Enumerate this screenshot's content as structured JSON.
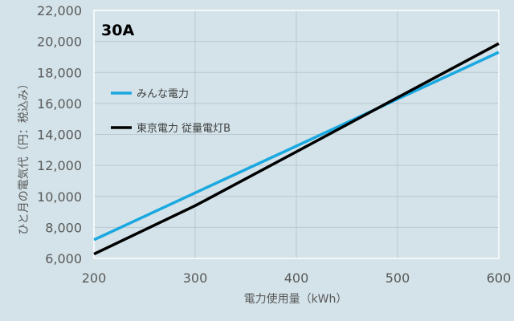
{
  "chart_data": {
    "type": "line",
    "title": "30A",
    "xlabel": "電力使用量（kWh）",
    "ylabel": "ひと月の電気代（円：税込み）",
    "xlim": [
      200,
      600
    ],
    "ylim": [
      6000,
      22000
    ],
    "x_ticks": [
      "200",
      "300",
      "400",
      "500",
      "600"
    ],
    "y_ticks": [
      "6,000",
      "8,000",
      "10,000",
      "12,000",
      "14,000",
      "16,000",
      "18,000",
      "20,000",
      "22,000"
    ],
    "grid": true,
    "legend_position": "left",
    "series": [
      {
        "name": "みんな電力",
        "color": "#1aa8e0",
        "x": [
          200,
          300,
          400,
          500,
          600
        ],
        "y": [
          7200,
          10230,
          13250,
          16280,
          19300
        ]
      },
      {
        "name": "東京電力 従量電灯B",
        "color": "#000000",
        "x": [
          200,
          300,
          400,
          500,
          600
        ],
        "y": [
          6280,
          9400,
          12880,
          16380,
          19860
        ]
      }
    ]
  }
}
